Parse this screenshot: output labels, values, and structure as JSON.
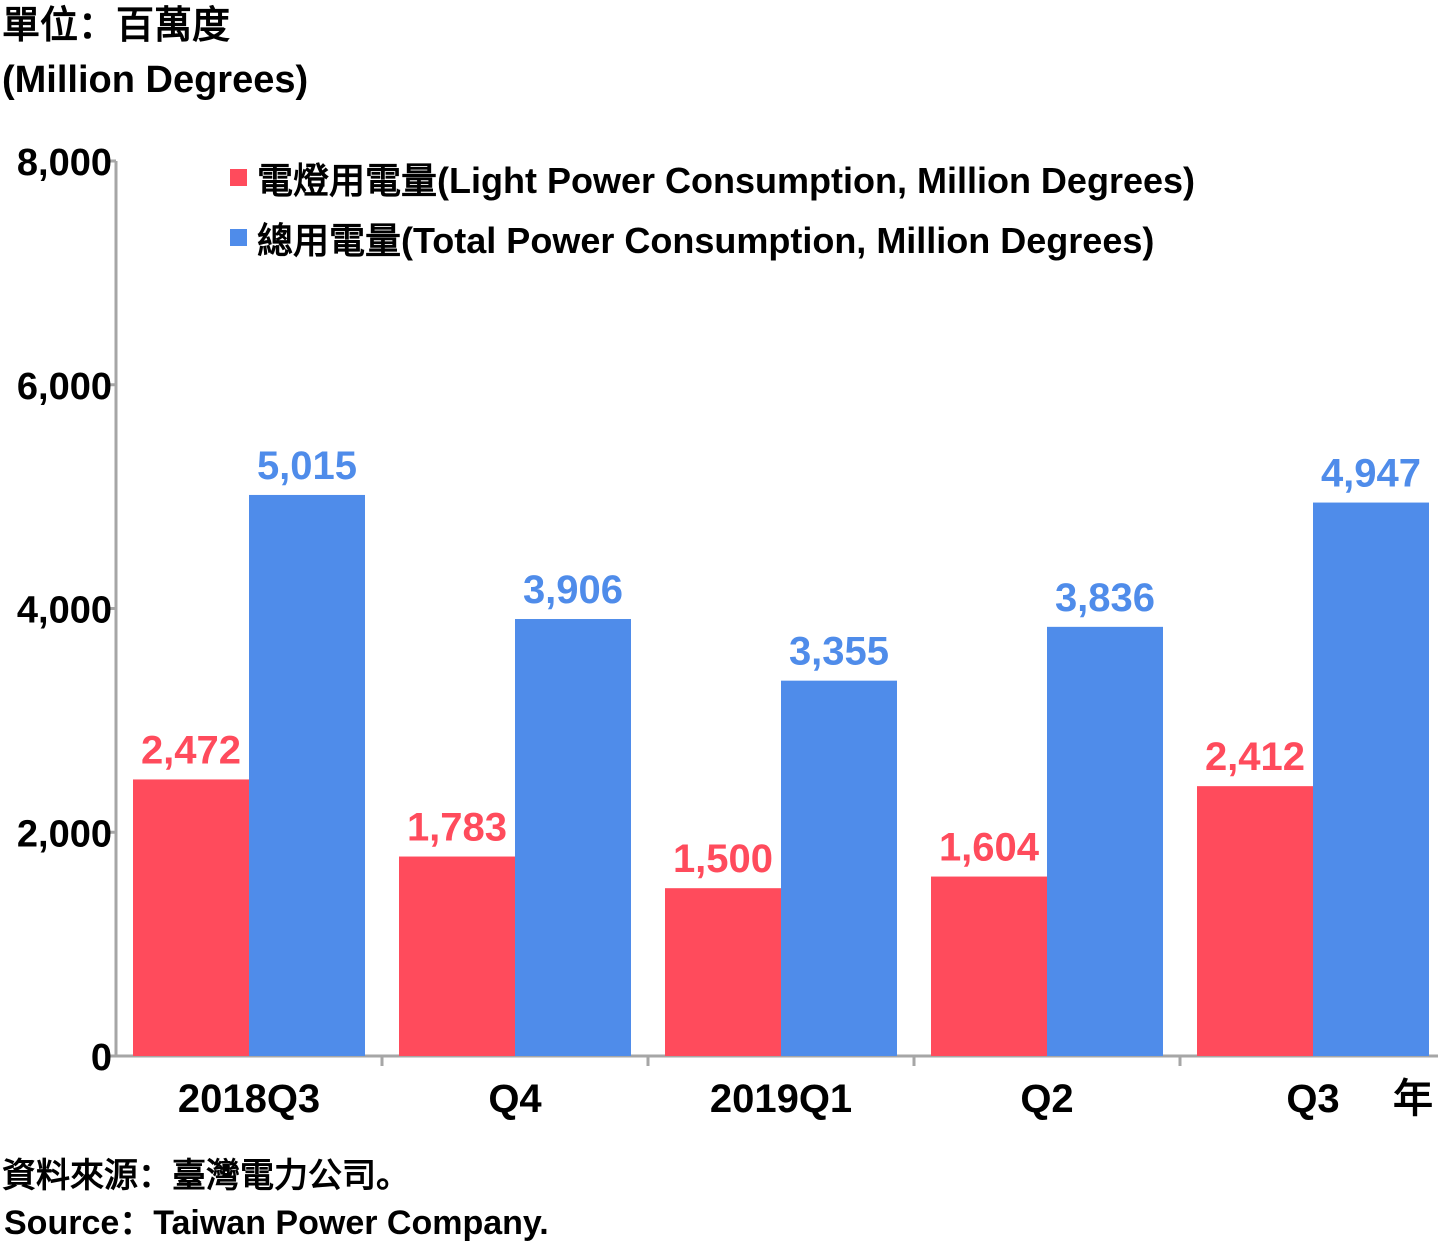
{
  "chart_data": {
    "type": "bar",
    "unit_label_zh": "單位：百萬度",
    "unit_label_en": "(Million Degrees)",
    "categories": [
      "2018Q3",
      "Q4",
      "2019Q1",
      "Q2",
      "Q3"
    ],
    "x_axis_suffix": "年",
    "series": [
      {
        "name": "電燈用電量(Light Power Consumption, Million Degrees)",
        "color": "#ff4b5c",
        "values": [
          2472,
          1783,
          1500,
          1604,
          2412
        ],
        "value_labels": [
          "2,472",
          "1,783",
          "1,500",
          "1,604",
          "2,412"
        ]
      },
      {
        "name": "總用電量(Total Power Consumption, Million Degrees)",
        "color": "#4f8cea",
        "values": [
          5015,
          3906,
          3355,
          3836,
          4947
        ],
        "value_labels": [
          "5,015",
          "3,906",
          "3,355",
          "3,836",
          "4,947"
        ]
      }
    ],
    "ylim": [
      0,
      8000
    ],
    "yticks": [
      0,
      2000,
      4000,
      6000,
      8000
    ],
    "ytick_labels": [
      "0",
      "2,000",
      "4,000",
      "6,000",
      "8,000"
    ],
    "grid": false,
    "legend_position": "top"
  },
  "source": {
    "zh": "資料來源：臺灣電力公司。",
    "en": "Source：Taiwan Power Company."
  }
}
